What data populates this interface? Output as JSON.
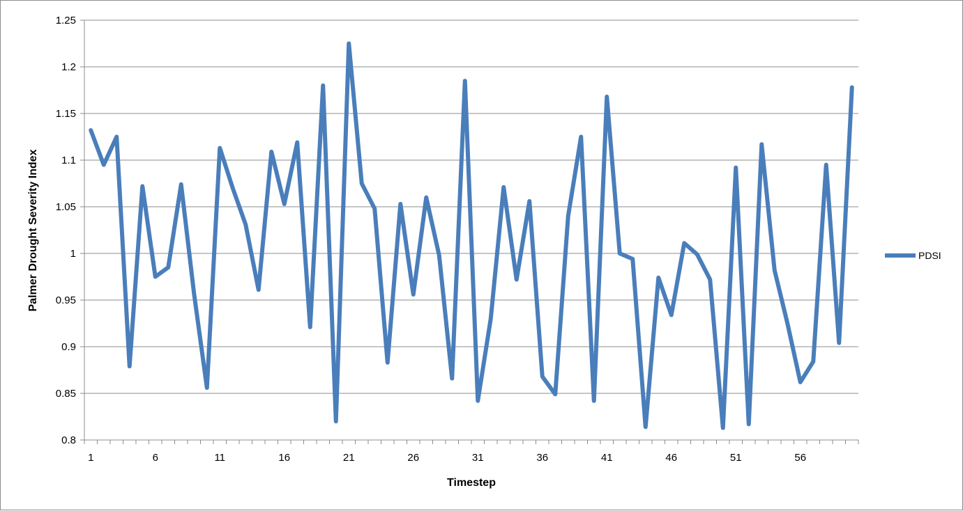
{
  "chart_data": {
    "type": "line",
    "title": "",
    "xlabel": "Timestep",
    "ylabel": "Palmer Drought Severity Index",
    "ylim": [
      0.8,
      1.25
    ],
    "yticks": [
      0.8,
      0.85,
      0.9,
      0.95,
      1,
      1.05,
      1.1,
      1.15,
      1.2,
      1.25
    ],
    "ytick_labels": [
      "0.8",
      "0.85",
      "0.9",
      "0.95",
      "1",
      "1.05",
      "1.1",
      "1.15",
      "1.2",
      "1.25"
    ],
    "xtick_labels": [
      "1",
      "6",
      "11",
      "16",
      "21",
      "26",
      "31",
      "36",
      "41",
      "46",
      "51",
      "56"
    ],
    "x": [
      1,
      2,
      3,
      4,
      5,
      6,
      7,
      8,
      9,
      10,
      11,
      12,
      13,
      14,
      15,
      16,
      17,
      18,
      19,
      20,
      21,
      22,
      23,
      24,
      25,
      26,
      27,
      28,
      29,
      30,
      31,
      32,
      33,
      34,
      35,
      36,
      37,
      38,
      39,
      40,
      41,
      42,
      43,
      44,
      45,
      46,
      47,
      48,
      49,
      50,
      51,
      52,
      53,
      54,
      55,
      56,
      57,
      58,
      59,
      60
    ],
    "grid": "horizontal",
    "legend": "right",
    "series": [
      {
        "name": "PDSI",
        "color": "#4a7ebb",
        "values": [
          1.132,
          1.095,
          1.125,
          0.879,
          1.072,
          0.975,
          0.985,
          1.074,
          0.957,
          0.856,
          1.113,
          1.07,
          1.031,
          0.961,
          1.109,
          1.053,
          1.119,
          0.921,
          1.18,
          0.82,
          1.225,
          1.075,
          1.048,
          0.883,
          1.053,
          0.956,
          1.06,
          0.998,
          0.866,
          1.185,
          0.842,
          0.93,
          1.071,
          0.972,
          1.056,
          0.868,
          0.849,
          1.04,
          1.125,
          0.842,
          1.168,
          1.0,
          0.994,
          0.814,
          0.974,
          0.934,
          1.011,
          0.999,
          0.972,
          0.813,
          1.092,
          0.817,
          1.117,
          0.982,
          0.925,
          0.862,
          0.884,
          1.095,
          0.904,
          1.178
        ]
      }
    ]
  }
}
